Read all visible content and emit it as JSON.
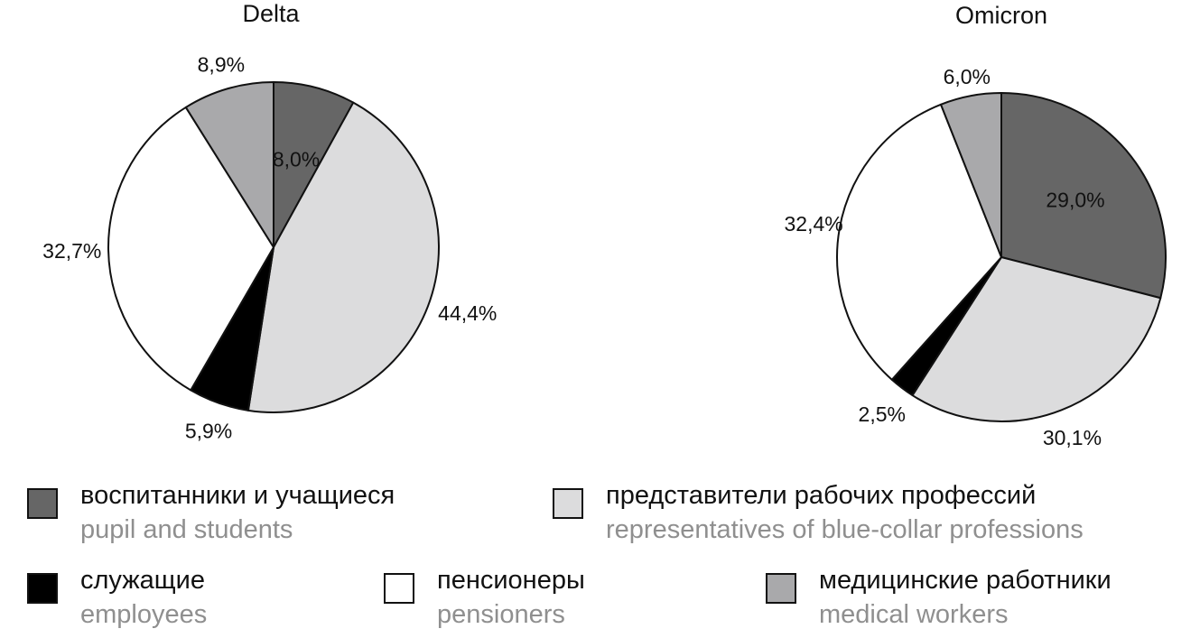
{
  "colors": {
    "pupils": "#666666",
    "workers": "#dcdcdd",
    "employees": "#000000",
    "pensioners": "#ffffff",
    "medical": "#a9a9ab"
  },
  "chart_data": [
    {
      "type": "pie",
      "title": "Delta",
      "slices": [
        {
          "key": "pupils",
          "value": 8.0,
          "label": "8,0%"
        },
        {
          "key": "workers",
          "value": 44.4,
          "label": "44,4%"
        },
        {
          "key": "employees",
          "value": 5.9,
          "label": "5,9%"
        },
        {
          "key": "pensioners",
          "value": 32.7,
          "label": "32,7%"
        },
        {
          "key": "medical",
          "value": 8.9,
          "label": "8,9%"
        }
      ]
    },
    {
      "type": "pie",
      "title": "Omicron",
      "slices": [
        {
          "key": "pupils",
          "value": 29.0,
          "label": "29,0%"
        },
        {
          "key": "workers",
          "value": 30.1,
          "label": "30,1%"
        },
        {
          "key": "employees",
          "value": 2.5,
          "label": "2,5%"
        },
        {
          "key": "pensioners",
          "value": 32.4,
          "label": "32,4%"
        },
        {
          "key": "medical",
          "value": 6.0,
          "label": "6,0%"
        }
      ]
    }
  ],
  "legend": [
    {
      "key": "pupils",
      "ru": "воспитанники и учащиеся",
      "en": "pupil and students"
    },
    {
      "key": "workers",
      "ru": "представители рабочих профессий",
      "en": "representatives of blue-collar professions"
    },
    {
      "key": "employees",
      "ru": "служащие",
      "en": "employees"
    },
    {
      "key": "pensioners",
      "ru": "пенсионеры",
      "en": "pensioners"
    },
    {
      "key": "medical",
      "ru": "медицинские работники",
      "en": "medical workers"
    }
  ]
}
